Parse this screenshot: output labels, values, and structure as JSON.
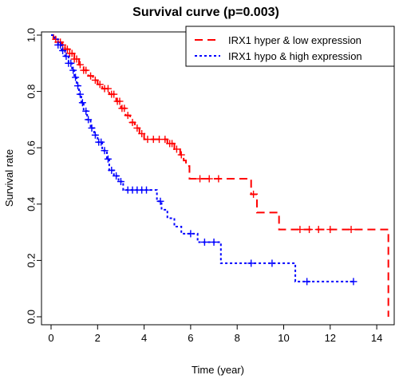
{
  "chart_data": {
    "type": "line",
    "title": "Survival curve (p=0.003)",
    "xlabel": "Time (year)",
    "ylabel": "Survival rate",
    "xlim": [
      0,
      15
    ],
    "ylim": [
      0,
      1
    ],
    "x_ticks": [
      "0",
      "2",
      "4",
      "6",
      "8",
      "10",
      "12",
      "14"
    ],
    "y_ticks": [
      "0.0",
      "0.2",
      "0.4",
      "0.6",
      "0.8",
      "1.0"
    ],
    "grid": false,
    "legend_position": "top-right",
    "series": [
      {
        "name": "IRX1 hyper & low expression",
        "color": "#ff0000",
        "dash": "dashed",
        "steps": [
          [
            0,
            1.0
          ],
          [
            0.1,
            0.99
          ],
          [
            0.2,
            0.985
          ],
          [
            0.3,
            0.975
          ],
          [
            0.45,
            0.965
          ],
          [
            0.6,
            0.95
          ],
          [
            0.8,
            0.935
          ],
          [
            1.0,
            0.915
          ],
          [
            1.2,
            0.895
          ],
          [
            1.4,
            0.875
          ],
          [
            1.6,
            0.855
          ],
          [
            1.8,
            0.84
          ],
          [
            2.0,
            0.825
          ],
          [
            2.2,
            0.81
          ],
          [
            2.5,
            0.79
          ],
          [
            2.8,
            0.765
          ],
          [
            3.0,
            0.74
          ],
          [
            3.2,
            0.715
          ],
          [
            3.4,
            0.69
          ],
          [
            3.6,
            0.67
          ],
          [
            3.8,
            0.65
          ],
          [
            4.0,
            0.63
          ],
          [
            5.0,
            0.615
          ],
          [
            5.3,
            0.595
          ],
          [
            5.55,
            0.575
          ],
          [
            5.7,
            0.555
          ],
          [
            5.8,
            0.535
          ],
          [
            5.95,
            0.49
          ],
          [
            8.6,
            0.435
          ],
          [
            8.85,
            0.37
          ],
          [
            9.8,
            0.31
          ],
          [
            14.5,
            0.0
          ]
        ],
        "censor_times": [
          0.2,
          0.3,
          0.4,
          0.5,
          0.6,
          0.7,
          0.8,
          0.9,
          1.0,
          1.1,
          1.25,
          1.4,
          1.5,
          1.7,
          1.9,
          2.1,
          2.3,
          2.45,
          2.6,
          2.7,
          2.85,
          2.95,
          3.05,
          3.15,
          3.3,
          3.5,
          3.7,
          3.9,
          4.15,
          4.4,
          4.65,
          4.9,
          5.1,
          5.2,
          5.4,
          5.6,
          6.4,
          6.8,
          7.2,
          8.7,
          10.7,
          11.1,
          11.5,
          12.0,
          12.9
        ]
      },
      {
        "name": "IRX1 hypo & high expression",
        "color": "#0000ff",
        "dash": "dotted",
        "steps": [
          [
            0,
            1.0
          ],
          [
            0.15,
            0.985
          ],
          [
            0.3,
            0.965
          ],
          [
            0.45,
            0.945
          ],
          [
            0.6,
            0.925
          ],
          [
            0.75,
            0.9
          ],
          [
            0.9,
            0.875
          ],
          [
            1.0,
            0.85
          ],
          [
            1.1,
            0.82
          ],
          [
            1.2,
            0.79
          ],
          [
            1.3,
            0.76
          ],
          [
            1.4,
            0.73
          ],
          [
            1.55,
            0.7
          ],
          [
            1.7,
            0.67
          ],
          [
            1.85,
            0.645
          ],
          [
            2.0,
            0.62
          ],
          [
            2.2,
            0.59
          ],
          [
            2.4,
            0.56
          ],
          [
            2.5,
            0.52
          ],
          [
            2.7,
            0.5
          ],
          [
            2.9,
            0.48
          ],
          [
            3.1,
            0.45
          ],
          [
            4.55,
            0.41
          ],
          [
            4.75,
            0.38
          ],
          [
            5.0,
            0.35
          ],
          [
            5.3,
            0.32
          ],
          [
            5.6,
            0.295
          ],
          [
            6.3,
            0.265
          ],
          [
            7.3,
            0.19
          ],
          [
            10.5,
            0.125
          ]
        ],
        "censor_times": [
          0.3,
          0.4,
          0.5,
          0.65,
          0.75,
          0.85,
          0.95,
          1.05,
          1.15,
          1.25,
          1.35,
          1.5,
          1.6,
          1.75,
          1.9,
          2.05,
          2.15,
          2.3,
          2.45,
          2.6,
          2.8,
          3.0,
          3.3,
          3.5,
          3.7,
          3.9,
          4.1,
          4.7,
          6.0,
          6.6,
          7.0,
          8.6,
          9.5,
          11.0,
          13.0
        ],
        "end_time": 13.0
      }
    ]
  }
}
